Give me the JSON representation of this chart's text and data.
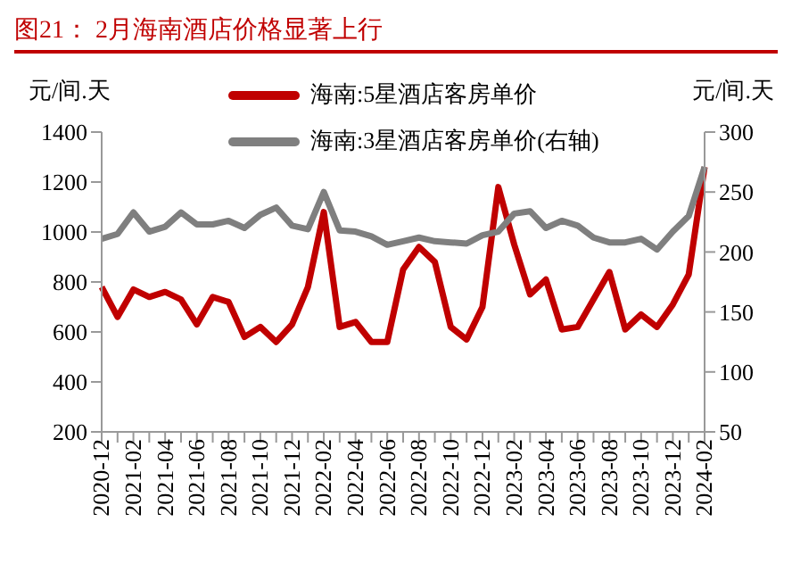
{
  "chart_data": {
    "type": "line",
    "title": "图21：  2月海南酒店价格显著上行",
    "ylabel": "元/间.天",
    "y2label": "元/间.天",
    "categories": [
      "2020-12",
      null,
      "2021-02",
      null,
      "2021-04",
      null,
      "2021-06",
      null,
      "2021-08",
      null,
      "2021-10",
      null,
      "2021-12",
      null,
      "2022-02",
      null,
      "2022-04",
      null,
      "2022-06",
      null,
      "2022-08",
      null,
      "2022-10",
      null,
      "2022-12",
      null,
      "2023-02",
      null,
      "2023-04",
      null,
      "2023-06",
      null,
      "2023-08",
      null,
      "2023-10",
      null,
      "2023-12",
      null,
      "2024-02"
    ],
    "series": [
      {
        "name": "海南:5星酒店客房单价",
        "color": "#c00000",
        "values": [
          780,
          660,
          770,
          740,
          760,
          730,
          630,
          740,
          720,
          580,
          620,
          560,
          630,
          780,
          1080,
          620,
          640,
          560,
          560,
          850,
          940,
          880,
          620,
          570,
          700,
          1180,
          950,
          750,
          810,
          610,
          620,
          730,
          840,
          610,
          670,
          620,
          710,
          830,
          1260
        ]
      },
      {
        "name": "海南:3星酒店客房单价(右轴)",
        "color": "#7f7f7f",
        "axis": "y2",
        "values": [
          211,
          215,
          233,
          217,
          221,
          233,
          223,
          223,
          226,
          220,
          231,
          237,
          222,
          219,
          250,
          218,
          217,
          213,
          206,
          209,
          212,
          209,
          208,
          207,
          214,
          217,
          232,
          234,
          220,
          226,
          222,
          212,
          208,
          208,
          211,
          202,
          217,
          230,
          271
        ]
      }
    ],
    "ylim": [
      200,
      1400
    ],
    "yticks": [
      200,
      400,
      600,
      800,
      1000,
      1200,
      1400
    ],
    "y2lim": [
      50,
      300
    ],
    "y2ticks": [
      50,
      100,
      150,
      200,
      250,
      300
    ],
    "legend": "top"
  }
}
